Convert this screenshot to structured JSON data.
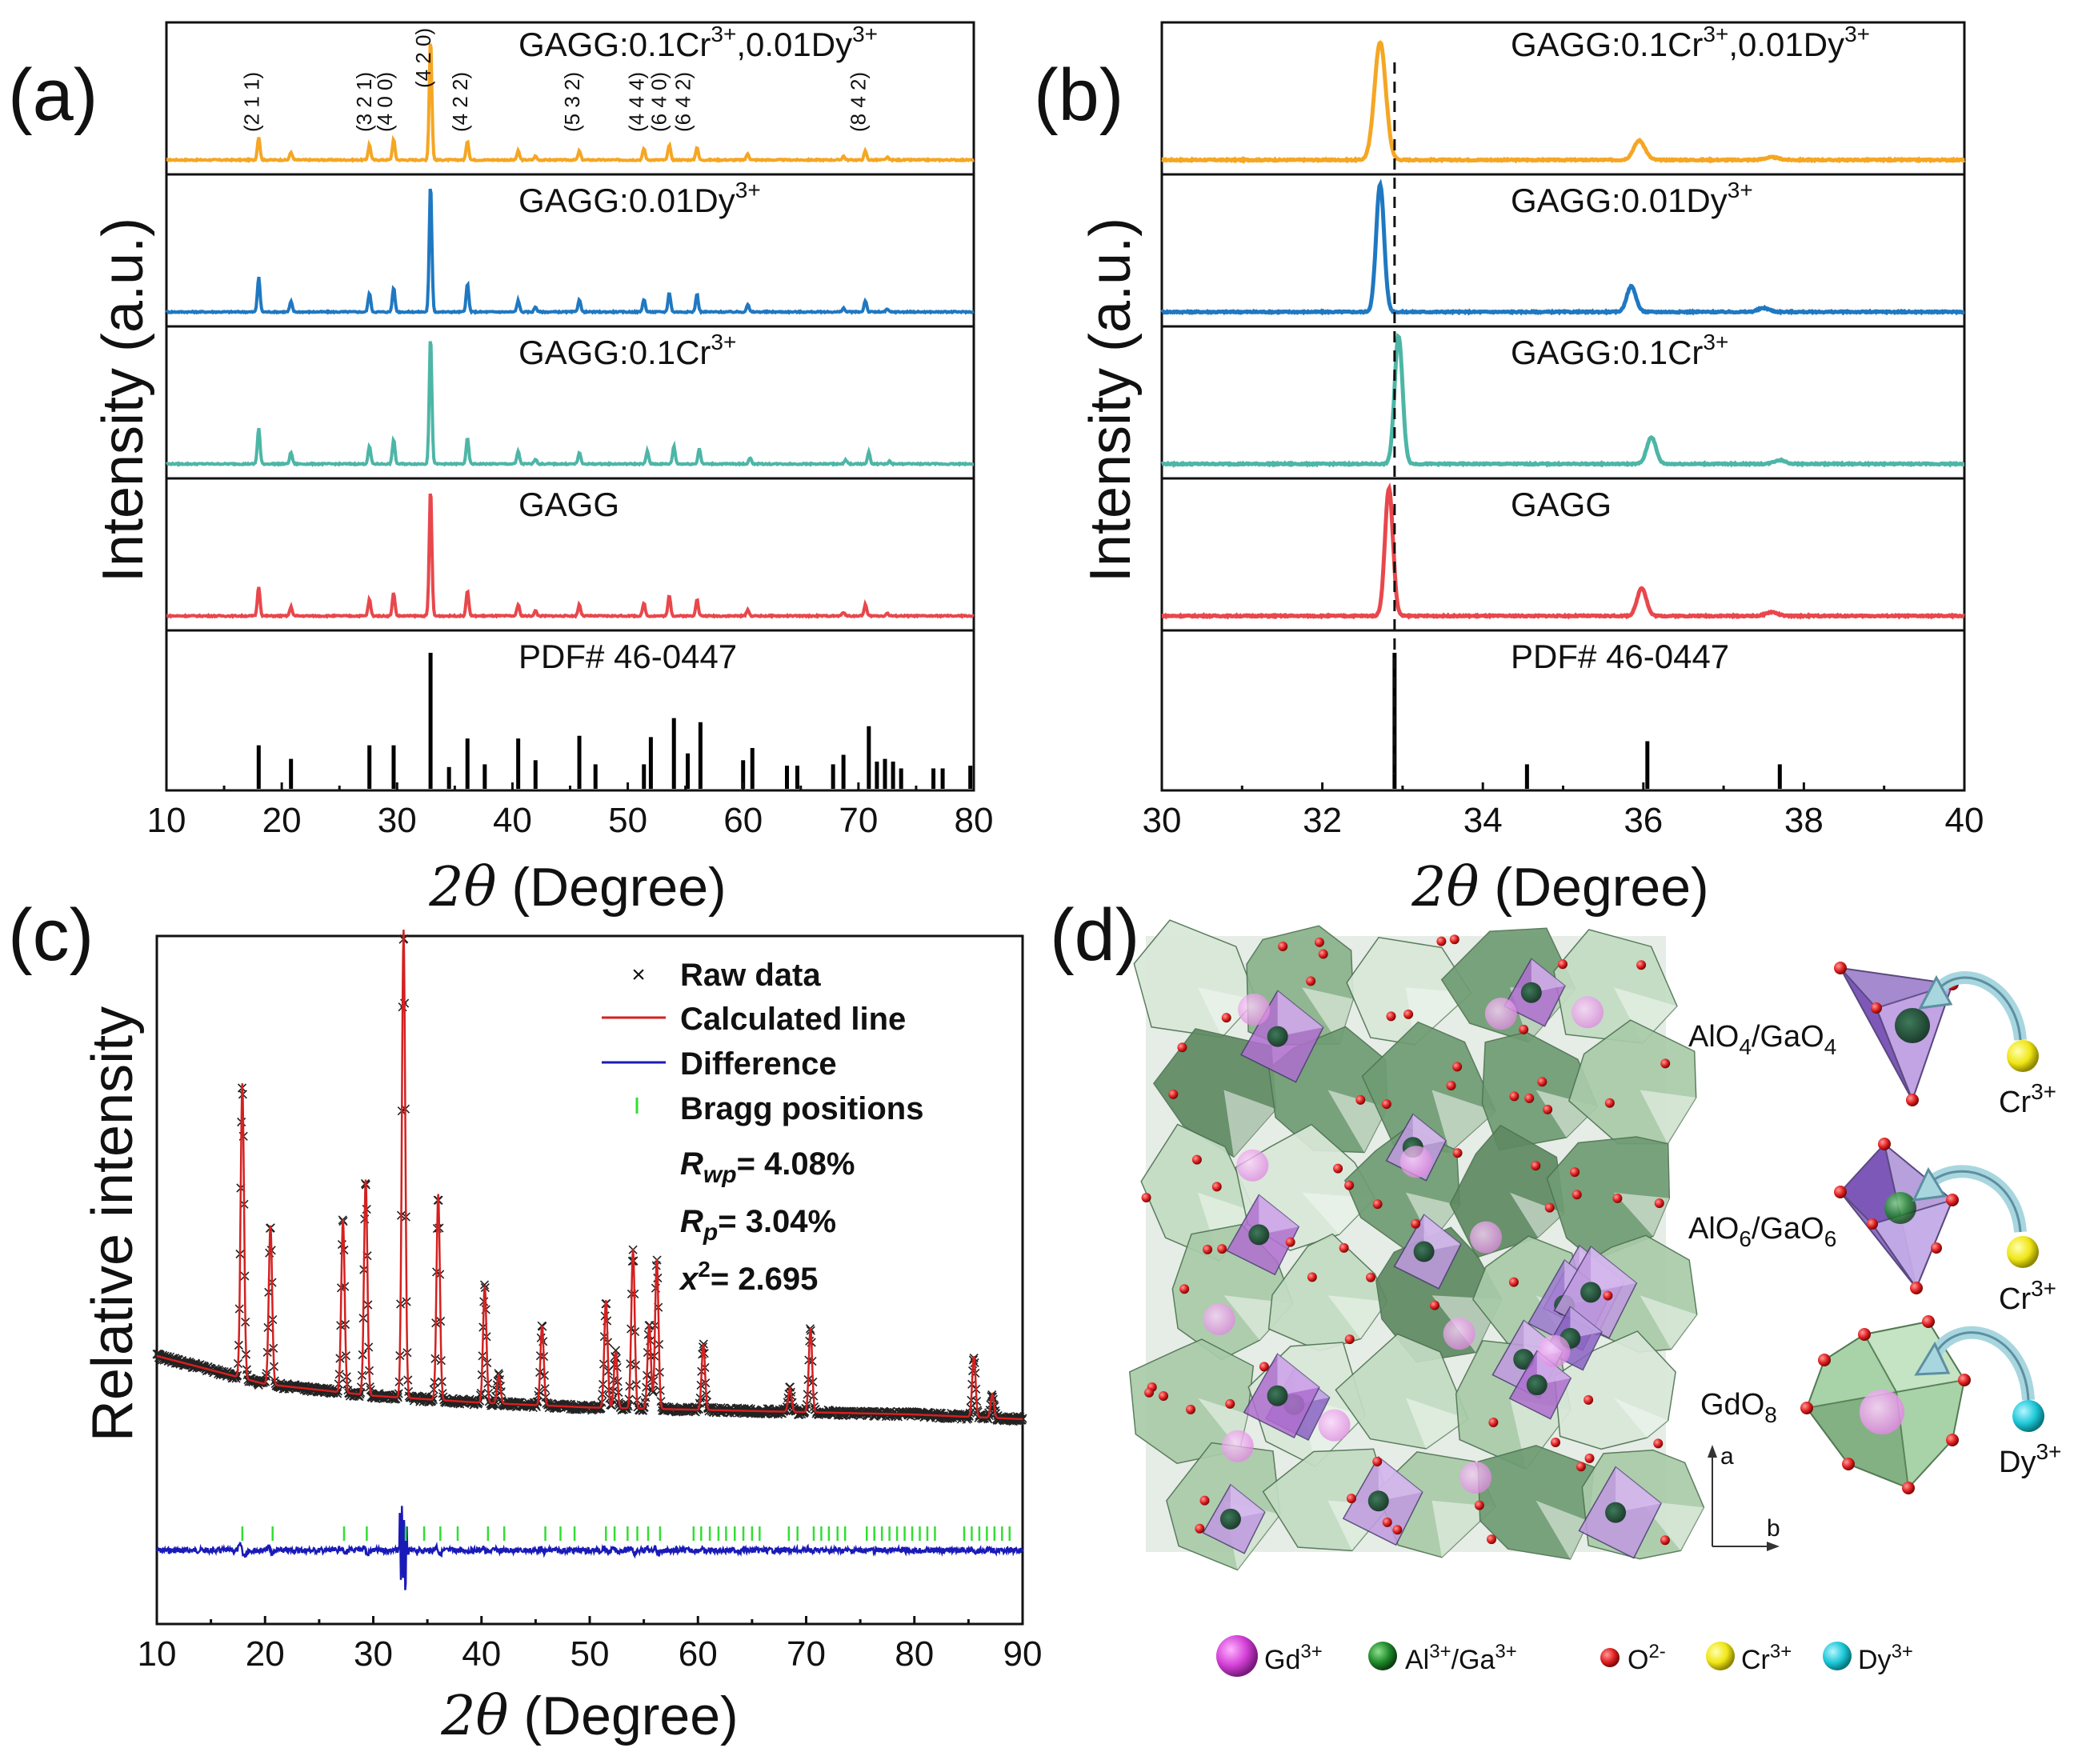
{
  "panels": {
    "a": {
      "label": "(a)",
      "ylabel": "Intensity (a.u.)",
      "xlabel_sym": "2θ",
      "xlabel_rest": " (Degree)",
      "xticks": [
        "10",
        "20",
        "30",
        "40",
        "50",
        "60",
        "70",
        "80"
      ],
      "samples": [
        {
          "name": "GAGG:0.1Cr",
          "sup1": "3+",
          "mid": ",0.01Dy",
          "sup2": "3+"
        },
        {
          "name": "GAGG:0.01Dy",
          "sup1": "3+",
          "mid": "",
          "sup2": ""
        },
        {
          "name": "GAGG:0.1Cr",
          "sup1": "3+",
          "mid": "",
          "sup2": ""
        },
        {
          "name": "GAGG",
          "sup1": "",
          "mid": "",
          "sup2": ""
        }
      ],
      "reference": "PDF# 46-0447",
      "hkl": [
        "(2 1 1)",
        "(3 2 1)",
        "(4 0 0)",
        "(4 2 0)",
        "(4 2 2)",
        "(5 3 2)",
        "(4 4 4)",
        "(6 4 0)",
        "(6 4 2)",
        "(8 4 2)"
      ]
    },
    "b": {
      "label": "(b)",
      "ylabel": "Intensity (a.u.)",
      "xlabel_sym": "2θ",
      "xlabel_rest": " (Degree)",
      "xticks": [
        "30",
        "32",
        "34",
        "36",
        "38",
        "40"
      ]
    },
    "c": {
      "label": "(c)",
      "ylabel": "Relative intensity",
      "xlabel_sym": "2θ",
      "xlabel_rest": " (Degree)",
      "xticks": [
        "10",
        "20",
        "30",
        "40",
        "50",
        "60",
        "70",
        "80",
        "90"
      ],
      "legend": {
        "raw": "Raw data",
        "calc": "Calculated line",
        "diff": "Difference",
        "bragg": "Bragg positions"
      },
      "stats": {
        "rwp_sym": "R",
        "rwp_sub": "wp",
        "rwp_val": "= 4.08%",
        "rp_sym": "R",
        "rp_sub": "p",
        "rp_val": "= 3.04%",
        "chi_sym": "x",
        "chi_sup": "2",
        "chi_val": "= 2.695"
      }
    },
    "d": {
      "label": "(d)",
      "poly_labels": [
        {
          "main": "AlO",
          "sub1": "4",
          "mid": "/GaO",
          "sub2": "4"
        },
        {
          "main": "AlO",
          "sub1": "6",
          "mid": "/GaO",
          "sub2": "6"
        },
        {
          "main": "GdO",
          "sub1": "8",
          "mid": "",
          "sub2": ""
        }
      ],
      "ions": [
        {
          "name": "Cr",
          "sup": "3+"
        },
        {
          "name": "Cr",
          "sup": "3+"
        },
        {
          "name": "Dy",
          "sup": "3+"
        }
      ],
      "axis_a": "a",
      "axis_b": "b",
      "legend": [
        {
          "name": "Gd",
          "sup": "3+",
          "color": "#d23fd6"
        },
        {
          "name": "Al",
          "sup": "3+",
          "mid": "/Ga",
          "sup2": "3+",
          "color": "#1f8a2a"
        },
        {
          "name": "O",
          "sup": "2-",
          "color": "#e01f1f"
        },
        {
          "name": "Cr",
          "sup": "3+",
          "color": "#f0e616"
        },
        {
          "name": "Dy",
          "sup": "3+",
          "color": "#1ec8d8"
        }
      ]
    }
  },
  "colors": {
    "cr_dy": "#f5a623",
    "dy": "#1f78c1",
    "cr": "#4db6a6",
    "gagg": "#e8474c",
    "ref": "#000000",
    "calc": "#d42020",
    "diff": "#1a1ab8",
    "bragg": "#33dd33"
  },
  "chart_data": [
    {
      "type": "line",
      "panel": "a",
      "title": "",
      "xlabel": "2θ (Degree)",
      "ylabel": "Intensity (a.u.)",
      "xlim": [
        10,
        80
      ],
      "series": [
        {
          "name": "GAGG:0.1Cr3+,0.01Dy3+",
          "peaks": [
            [
              18.0,
              0.18
            ],
            [
              20.8,
              0.06
            ],
            [
              27.6,
              0.12
            ],
            [
              29.7,
              0.16
            ],
            [
              32.9,
              0.95
            ],
            [
              36.1,
              0.15
            ],
            [
              40.5,
              0.07
            ],
            [
              42.0,
              0.03
            ],
            [
              45.8,
              0.07
            ],
            [
              51.4,
              0.09
            ],
            [
              53.6,
              0.12
            ],
            [
              56.0,
              0.1
            ],
            [
              60.4,
              0.05
            ],
            [
              68.7,
              0.03
            ],
            [
              70.6,
              0.07
            ],
            [
              72.5,
              0.02
            ]
          ]
        },
        {
          "name": "GAGG:0.01Dy3+",
          "peaks": [
            [
              18.0,
              0.27
            ],
            [
              20.8,
              0.08
            ],
            [
              27.6,
              0.15
            ],
            [
              29.7,
              0.19
            ],
            [
              32.9,
              1.0
            ],
            [
              36.1,
              0.22
            ],
            [
              40.5,
              0.09
            ],
            [
              42.0,
              0.04
            ],
            [
              45.8,
              0.1
            ],
            [
              51.4,
              0.1
            ],
            [
              53.6,
              0.15
            ],
            [
              56.0,
              0.14
            ],
            [
              60.4,
              0.06
            ],
            [
              68.7,
              0.03
            ],
            [
              70.6,
              0.09
            ],
            [
              72.5,
              0.02
            ]
          ]
        },
        {
          "name": "GAGG:0.1Cr3+",
          "peaks": [
            [
              18.0,
              0.28
            ],
            [
              20.8,
              0.09
            ],
            [
              27.6,
              0.14
            ],
            [
              29.7,
              0.19
            ],
            [
              32.9,
              1.0
            ],
            [
              36.1,
              0.2
            ],
            [
              40.5,
              0.1
            ],
            [
              42.0,
              0.04
            ],
            [
              45.8,
              0.09
            ],
            [
              51.7,
              0.1
            ],
            [
              54.0,
              0.14
            ],
            [
              56.2,
              0.12
            ],
            [
              60.6,
              0.05
            ],
            [
              68.9,
              0.03
            ],
            [
              70.9,
              0.09
            ],
            [
              72.7,
              0.02
            ]
          ]
        },
        {
          "name": "GAGG",
          "peaks": [
            [
              18.0,
              0.23
            ],
            [
              20.8,
              0.07
            ],
            [
              27.6,
              0.13
            ],
            [
              29.7,
              0.18
            ],
            [
              32.9,
              1.0
            ],
            [
              36.1,
              0.2
            ],
            [
              40.5,
              0.09
            ],
            [
              42.0,
              0.04
            ],
            [
              45.8,
              0.09
            ],
            [
              51.4,
              0.1
            ],
            [
              53.6,
              0.16
            ],
            [
              56.0,
              0.13
            ],
            [
              60.4,
              0.05
            ],
            [
              68.7,
              0.03
            ],
            [
              70.6,
              0.09
            ],
            [
              72.5,
              0.02
            ]
          ]
        },
        {
          "name": "PDF# 46-0447",
          "sticks": [
            [
              18.0,
              0.32
            ],
            [
              20.8,
              0.22
            ],
            [
              27.6,
              0.32
            ],
            [
              29.7,
              0.32
            ],
            [
              32.9,
              1.0
            ],
            [
              34.5,
              0.16
            ],
            [
              36.1,
              0.37
            ],
            [
              37.6,
              0.18
            ],
            [
              40.5,
              0.37
            ],
            [
              42.0,
              0.21
            ],
            [
              45.8,
              0.39
            ],
            [
              47.2,
              0.18
            ],
            [
              51.4,
              0.18
            ],
            [
              52.0,
              0.38
            ],
            [
              54.0,
              0.52
            ],
            [
              55.2,
              0.26
            ],
            [
              56.3,
              0.49
            ],
            [
              60.0,
              0.21
            ],
            [
              60.8,
              0.3
            ],
            [
              63.8,
              0.17
            ],
            [
              64.7,
              0.17
            ],
            [
              67.8,
              0.18
            ],
            [
              68.7,
              0.25
            ],
            [
              70.9,
              0.46
            ],
            [
              71.6,
              0.2
            ],
            [
              72.3,
              0.22
            ],
            [
              73.0,
              0.2
            ],
            [
              73.7,
              0.15
            ],
            [
              76.5,
              0.15
            ],
            [
              77.3,
              0.15
            ],
            [
              79.7,
              0.17
            ]
          ]
        }
      ]
    },
    {
      "type": "line",
      "panel": "b",
      "title": "",
      "xlabel": "2θ (Degree)",
      "ylabel": "Intensity (a.u.)",
      "xlim": [
        30,
        40
      ],
      "dashed_reference_x": 32.9,
      "series": [
        {
          "name": "GAGG:0.1Cr3+,0.01Dy3+",
          "peaks": [
            [
              32.72,
              0.92,
              0.1
            ],
            [
              35.95,
              0.15,
              0.1
            ],
            [
              37.6,
              0.02,
              0.12
            ]
          ]
        },
        {
          "name": "GAGG:0.01Dy3+",
          "peaks": [
            [
              32.72,
              1.0,
              0.07
            ],
            [
              35.85,
              0.2,
              0.08
            ],
            [
              37.5,
              0.03,
              0.1
            ]
          ]
        },
        {
          "name": "GAGG:0.1Cr3+",
          "peaks": [
            [
              32.95,
              1.0,
              0.07
            ],
            [
              36.1,
              0.21,
              0.08
            ],
            [
              37.7,
              0.03,
              0.1
            ]
          ]
        },
        {
          "name": "GAGG",
          "peaks": [
            [
              32.83,
              1.0,
              0.07
            ],
            [
              35.98,
              0.22,
              0.08
            ],
            [
              37.6,
              0.03,
              0.1
            ]
          ]
        },
        {
          "name": "PDF# 46-0447",
          "sticks": [
            [
              32.9,
              1.0
            ],
            [
              34.55,
              0.18
            ],
            [
              36.05,
              0.35
            ],
            [
              37.7,
              0.18
            ]
          ]
        }
      ]
    },
    {
      "type": "line",
      "panel": "c",
      "title": "",
      "xlabel": "2θ (Degree)",
      "ylabel": "Relative intensity",
      "xlim": [
        10,
        90
      ],
      "background": [
        [
          10,
          0.265
        ],
        [
          20,
          0.205
        ],
        [
          30,
          0.18
        ],
        [
          40,
          0.165
        ],
        [
          50,
          0.155
        ],
        [
          60,
          0.15
        ],
        [
          70,
          0.145
        ],
        [
          80,
          0.14
        ],
        [
          90,
          0.13
        ]
      ],
      "peaks": [
        [
          17.9,
          0.63
        ],
        [
          20.5,
          0.34
        ],
        [
          27.2,
          0.37
        ],
        [
          29.3,
          0.46
        ],
        [
          32.8,
          1.0
        ],
        [
          36.0,
          0.44
        ],
        [
          40.3,
          0.25
        ],
        [
          41.6,
          0.06
        ],
        [
          45.6,
          0.17
        ],
        [
          51.5,
          0.23
        ],
        [
          52.4,
          0.12
        ],
        [
          54.0,
          0.34
        ],
        [
          56.2,
          0.32
        ],
        [
          55.5,
          0.18
        ],
        [
          60.5,
          0.14
        ],
        [
          68.5,
          0.05
        ],
        [
          70.4,
          0.18
        ],
        [
          85.5,
          0.13
        ],
        [
          87.2,
          0.05
        ]
      ],
      "bragg_positions": [
        17.9,
        20.7,
        27.3,
        29.4,
        33.0,
        34.7,
        36.2,
        37.8,
        40.6,
        42.1,
        45.9,
        47.3,
        48.6,
        51.5,
        52.3,
        53.5,
        54.4,
        55.4,
        56.5,
        59.6,
        60.3,
        61.1,
        61.9,
        62.6,
        63.4,
        64.2,
        65.0,
        65.7,
        68.4,
        69.2,
        70.7,
        71.4,
        72.1,
        72.9,
        73.6,
        75.6,
        76.3,
        77.0,
        77.7,
        78.4,
        79.1,
        79.8,
        80.5,
        81.2,
        81.9,
        84.6,
        85.3,
        86.0,
        86.7,
        87.4,
        88.1,
        88.8
      ],
      "legend": [
        "Raw data",
        "Calculated line",
        "Difference",
        "Bragg positions"
      ],
      "stats": {
        "Rwp": "4.08%",
        "Rp": "3.04%",
        "x2": "2.695"
      }
    }
  ]
}
